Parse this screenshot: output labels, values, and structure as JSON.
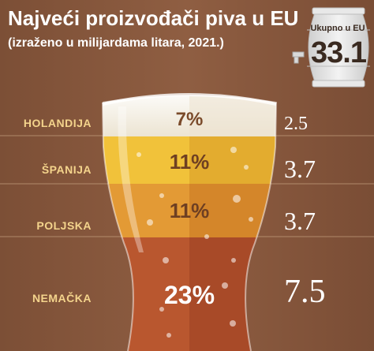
{
  "header": {
    "title": "Najveći proizvođači piva u EU",
    "subtitle": "(izraženo u milijardama litara, 2021.)"
  },
  "total": {
    "label": "Ukupno u EU",
    "value": "33.1"
  },
  "colors": {
    "background": "#8a5a3f",
    "foam": "#f3eee4",
    "beer_light": "#f1c23a",
    "beer_mid": "#e7a63a",
    "beer_amber": "#d98a2c",
    "beer_dark": "#b3532d",
    "country_label": "#f4d48c"
  },
  "chart_data": {
    "type": "bar",
    "categories": [
      "HOLANDIJA",
      "ŠPANIJA",
      "POLJSKA",
      "NEMAČKA"
    ],
    "values": [
      2.5,
      3.7,
      3.7,
      7.5
    ],
    "value_labels": [
      "2.5",
      "3.7",
      "3.7",
      "7.5"
    ],
    "percent_labels": [
      "7%",
      "11%",
      "11%",
      "23%"
    ],
    "percentages": [
      7,
      11,
      11,
      23
    ],
    "title": "Najveći proizvođači piva u EU",
    "subtitle": "(izraženo u milijardama litara, 2021.)",
    "total": 33.1
  }
}
